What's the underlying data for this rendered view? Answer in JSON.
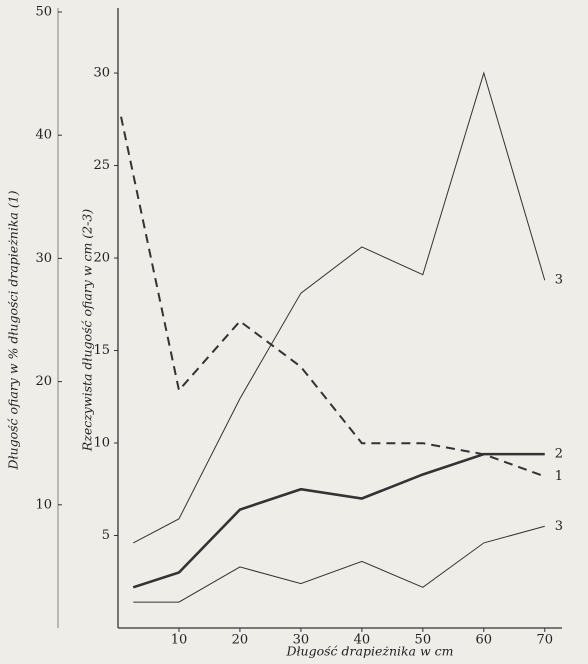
{
  "chart_data": {
    "type": "line",
    "xlabel": "Długość drapieżnika w cm",
    "ylabel": "Długość ofiary w % długości drapieżnika (1)",
    "y2label": "Rzeczywista długość ofiary w cm (2-3)",
    "xlim": [
      0,
      72.5
    ],
    "xticks": [
      10,
      20,
      30,
      40,
      50,
      60,
      70
    ],
    "ylim": [
      0,
      50
    ],
    "yticks": [
      10,
      20,
      30,
      40,
      50
    ],
    "y2lim": [
      0,
      33.3
    ],
    "y2ticks": [
      5,
      10,
      15,
      20,
      25,
      30
    ],
    "series": [
      {
        "name": "3",
        "color": "#333333",
        "style": "thin",
        "axis": "y2",
        "x": [
          2.5,
          10,
          20,
          30,
          40,
          50,
          60,
          70
        ],
        "values": [
          4.6,
          5.9,
          12.4,
          18.1,
          20.6,
          19.1,
          30,
          18.8
        ]
      },
      {
        "name": "2",
        "color": "#333333",
        "style": "thick",
        "axis": "y2",
        "x": [
          2.5,
          10,
          20,
          30,
          40,
          50,
          60,
          70
        ],
        "values": [
          2.2,
          3.0,
          6.4,
          7.5,
          7.0,
          8.3,
          9.4,
          9.4
        ]
      },
      {
        "name": "1",
        "color": "#333333",
        "style": "dashed",
        "axis": "y",
        "x": [
          0.5,
          10,
          20,
          30,
          40,
          50,
          60,
          70
        ],
        "values": [
          41.5,
          19.3,
          24.9,
          21.2,
          15,
          15,
          14.1,
          12.3
        ]
      },
      {
        "name": "3",
        "color": "#333333",
        "style": "thin",
        "axis": "y2",
        "x": [
          2.5,
          10,
          20,
          30,
          40,
          50,
          60,
          70
        ],
        "values": [
          1.4,
          1.4,
          3.3,
          2.4,
          3.6,
          2.2,
          4.6,
          5.5
        ]
      }
    ]
  }
}
